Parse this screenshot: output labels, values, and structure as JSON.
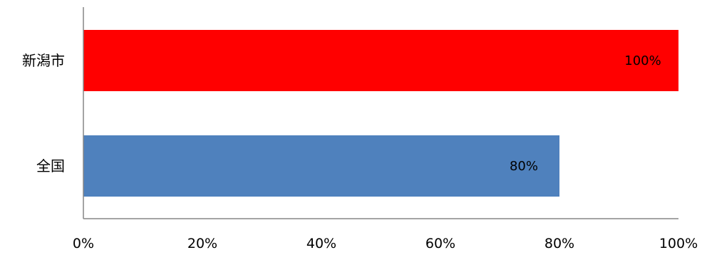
{
  "chart_data": {
    "type": "bar",
    "orientation": "horizontal",
    "categories": [
      "新潟市",
      "全国"
    ],
    "values": [
      100,
      80
    ],
    "value_labels": [
      "100%",
      "80%"
    ],
    "colors": [
      "#ff0000",
      "#4f81bd"
    ],
    "xlim": [
      0,
      100
    ],
    "x_ticks": [
      0,
      20,
      40,
      60,
      80,
      100
    ],
    "x_tick_labels": [
      "0%",
      "20%",
      "40%",
      "60%",
      "80%",
      "100%"
    ],
    "title": "",
    "xlabel": "",
    "ylabel": "",
    "grid": false,
    "legend": "none"
  }
}
